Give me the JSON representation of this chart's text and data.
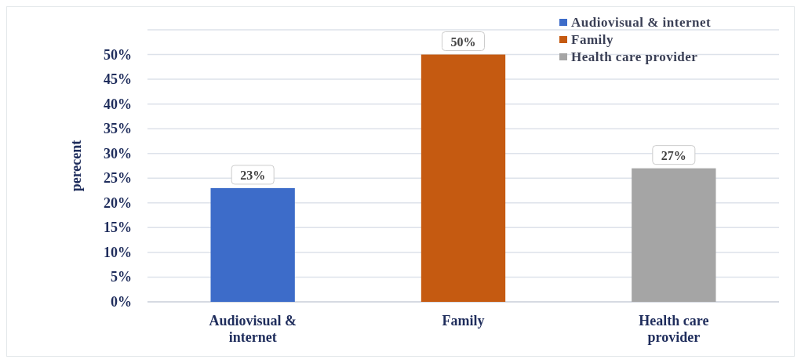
{
  "chart_data": {
    "type": "bar",
    "ylabel": "perecent",
    "categories": [
      "Audiovisual & internet",
      "Family",
      "Health care provider"
    ],
    "series": [
      {
        "name": "Audiovisual & internet",
        "color": "#3d6cc9",
        "values": [
          23,
          null,
          null
        ],
        "value_labels": [
          "23%",
          null,
          null
        ]
      },
      {
        "name": "Family",
        "color": "#c55a11",
        "values": [
          null,
          50,
          null
        ],
        "value_labels": [
          null,
          "50%",
          null
        ]
      },
      {
        "name": "Health care provider",
        "color": "#a5a5a5",
        "values": [
          null,
          null,
          27
        ],
        "value_labels": [
          null,
          null,
          "27%"
        ]
      }
    ],
    "ylim": [
      0,
      55
    ],
    "yticks": [
      {
        "value": 0,
        "label": "0%"
      },
      {
        "value": 5,
        "label": "5%"
      },
      {
        "value": 10,
        "label": "10%"
      },
      {
        "value": 15,
        "label": "15%"
      },
      {
        "value": 20,
        "label": "20%"
      },
      {
        "value": 25,
        "label": "25%"
      },
      {
        "value": 30,
        "label": "30%"
      },
      {
        "value": 35,
        "label": "35%"
      },
      {
        "value": 40,
        "label": "40%"
      },
      {
        "value": 45,
        "label": "45%"
      },
      {
        "value": 50,
        "label": "50%"
      },
      {
        "value": 55,
        "label": null
      }
    ],
    "grid": "y",
    "legend": "top right"
  }
}
